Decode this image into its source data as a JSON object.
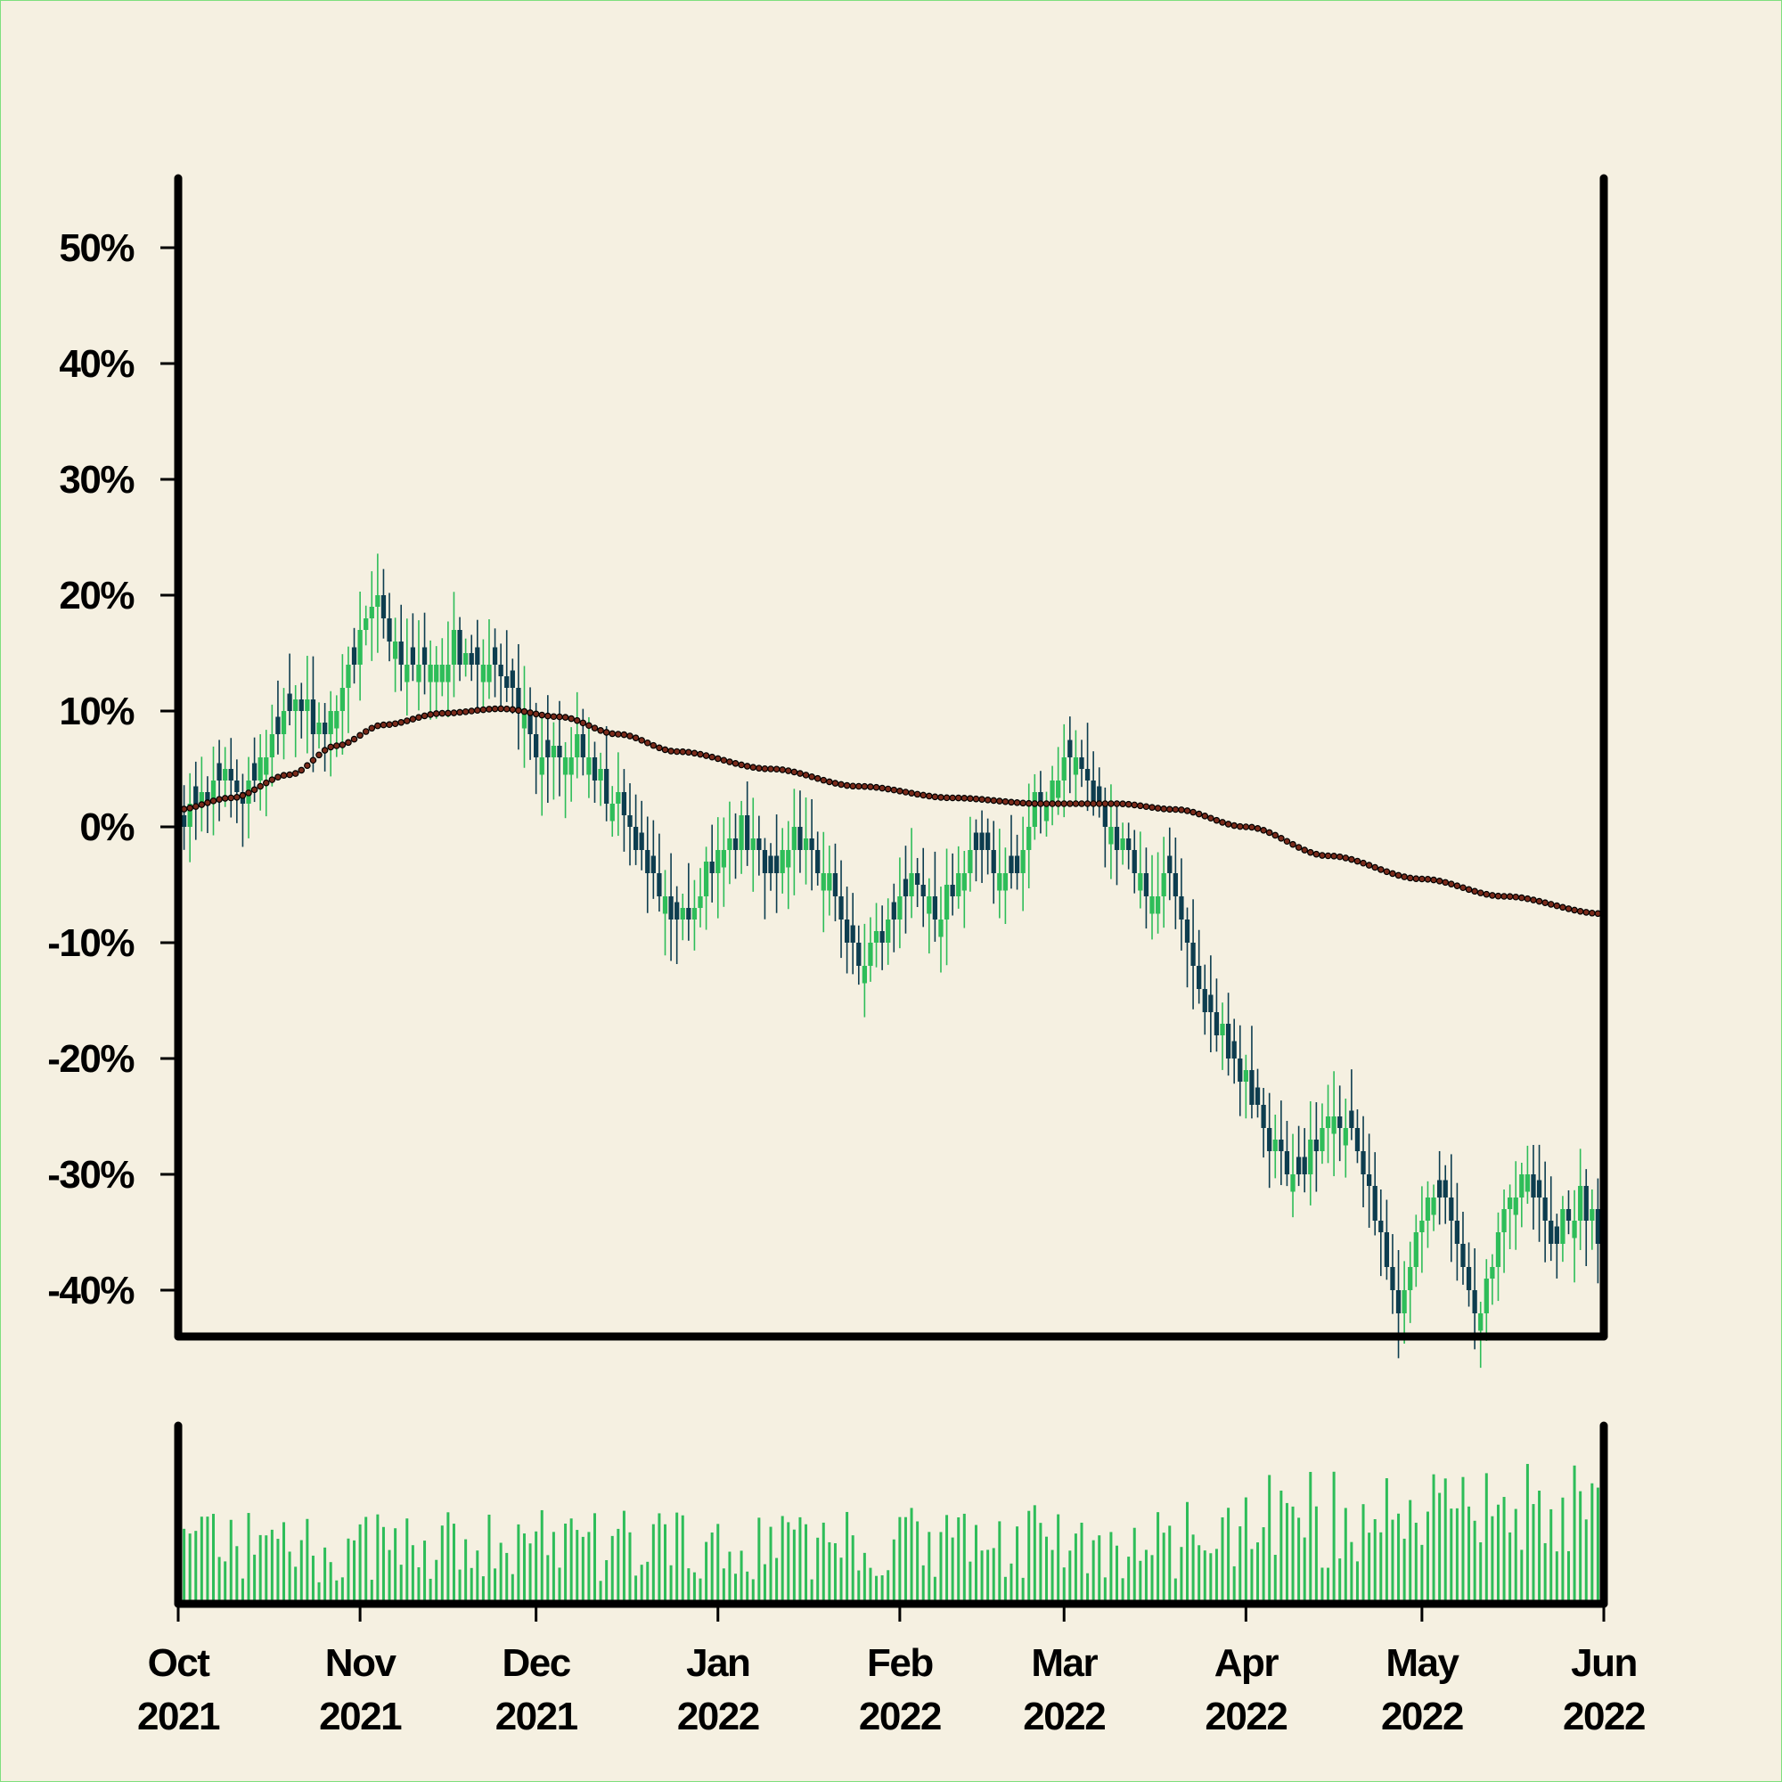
{
  "chart_data": [
    {
      "type": "candlestick",
      "panel": "price",
      "y_axis": {
        "ticks": [
          "50%",
          "40%",
          "30%",
          "20%",
          "10%",
          "0%",
          "-10%",
          "-20%",
          "-30%",
          "-40%"
        ],
        "tick_values": [
          50,
          40,
          30,
          20,
          10,
          0,
          -10,
          -20,
          -30,
          -40
        ],
        "range": [
          -44,
          56
        ],
        "unit": "%"
      },
      "x_axis": {
        "range": [
          "2021-10-01",
          "2022-06-01"
        ],
        "ticks": [
          {
            "date": "2021-10-01",
            "month": "Oct",
            "year": "2021"
          },
          {
            "date": "2021-11-01",
            "month": "Nov",
            "year": "2021"
          },
          {
            "date": "2021-12-01",
            "month": "Dec",
            "year": "2021"
          },
          {
            "date": "2022-01-01",
            "month": "Jan",
            "year": "2022"
          },
          {
            "date": "2022-02-01",
            "month": "Feb",
            "year": "2022"
          },
          {
            "date": "2022-03-01",
            "month": "Mar",
            "year": "2022"
          },
          {
            "date": "2022-04-01",
            "month": "Apr",
            "year": "2022"
          },
          {
            "date": "2022-05-01",
            "month": "May",
            "year": "2022"
          },
          {
            "date": "2022-06-01",
            "month": "Jun",
            "year": "2022"
          }
        ]
      },
      "close_path": [
        [
          "2021-10-01",
          0
        ],
        [
          "2021-10-08",
          4
        ],
        [
          "2021-10-12",
          2
        ],
        [
          "2021-10-20",
          10
        ],
        [
          "2021-10-26",
          8
        ],
        [
          "2021-11-01",
          16
        ],
        [
          "2021-11-04",
          19
        ],
        [
          "2021-11-08",
          14
        ],
        [
          "2021-11-12",
          13
        ],
        [
          "2021-11-17",
          15
        ],
        [
          "2021-11-23",
          14
        ],
        [
          "2021-11-29",
          10
        ],
        [
          "2021-12-02",
          5
        ],
        [
          "2021-12-08",
          7
        ],
        [
          "2021-12-15",
          1
        ],
        [
          "2021-12-22",
          -6
        ],
        [
          "2021-12-27",
          -9
        ],
        [
          "2022-01-01",
          -2
        ],
        [
          "2022-01-05",
          -1
        ],
        [
          "2022-01-10",
          -4
        ],
        [
          "2022-01-14",
          -1
        ],
        [
          "2022-01-20",
          -5
        ],
        [
          "2022-01-25",
          -12
        ],
        [
          "2022-01-28",
          -10
        ],
        [
          "2022-02-03",
          -5
        ],
        [
          "2022-02-08",
          -8
        ],
        [
          "2022-02-14",
          -2
        ],
        [
          "2022-02-20",
          -5
        ],
        [
          "2022-02-24",
          1
        ],
        [
          "2022-02-28",
          4
        ],
        [
          "2022-03-02",
          6
        ],
        [
          "2022-03-08",
          0
        ],
        [
          "2022-03-12",
          -3
        ],
        [
          "2022-03-16",
          -6
        ],
        [
          "2022-03-19",
          -4
        ],
        [
          "2022-03-24",
          -15
        ],
        [
          "2022-04-01",
          -22
        ],
        [
          "2022-04-05",
          -28
        ],
        [
          "2022-04-10",
          -30
        ],
        [
          "2022-04-15",
          -26
        ],
        [
          "2022-04-19",
          -26
        ],
        [
          "2022-04-27",
          -42
        ],
        [
          "2022-05-02",
          -33
        ],
        [
          "2022-05-05",
          -32
        ],
        [
          "2022-05-10",
          -43
        ],
        [
          "2022-05-16",
          -33
        ],
        [
          "2022-05-19",
          -30
        ],
        [
          "2022-05-23",
          -36
        ],
        [
          "2022-05-28",
          -33
        ],
        [
          "2022-06-01",
          -36
        ]
      ],
      "moving_average": [
        [
          "2021-10-01",
          1.5
        ],
        [
          "2021-10-10",
          2.5
        ],
        [
          "2021-10-20",
          4.5
        ],
        [
          "2021-10-28",
          7
        ],
        [
          "2021-11-05",
          8.8
        ],
        [
          "2021-11-15",
          9.8
        ],
        [
          "2021-11-25",
          10.2
        ],
        [
          "2021-12-05",
          9.5
        ],
        [
          "2021-12-15",
          8
        ],
        [
          "2021-12-25",
          6.5
        ],
        [
          "2022-01-10",
          5
        ],
        [
          "2022-01-25",
          3.5
        ],
        [
          "2022-02-10",
          2.5
        ],
        [
          "2022-02-25",
          2
        ],
        [
          "2022-03-10",
          2
        ],
        [
          "2022-03-20",
          1.5
        ],
        [
          "2022-04-01",
          0
        ],
        [
          "2022-04-15",
          -2.5
        ],
        [
          "2022-05-01",
          -4.5
        ],
        [
          "2022-05-15",
          -6
        ],
        [
          "2022-06-01",
          -7.5
        ]
      ],
      "colors": {
        "up": "#2ebd59",
        "down": "#0d3d4f",
        "average": "#7a2a1a"
      },
      "grid": false
    },
    {
      "type": "bar",
      "panel": "volume",
      "x_axis": {
        "range": [
          "2021-10-01",
          "2022-06-01"
        ]
      },
      "color": "#2ebd59",
      "grid": false
    }
  ]
}
